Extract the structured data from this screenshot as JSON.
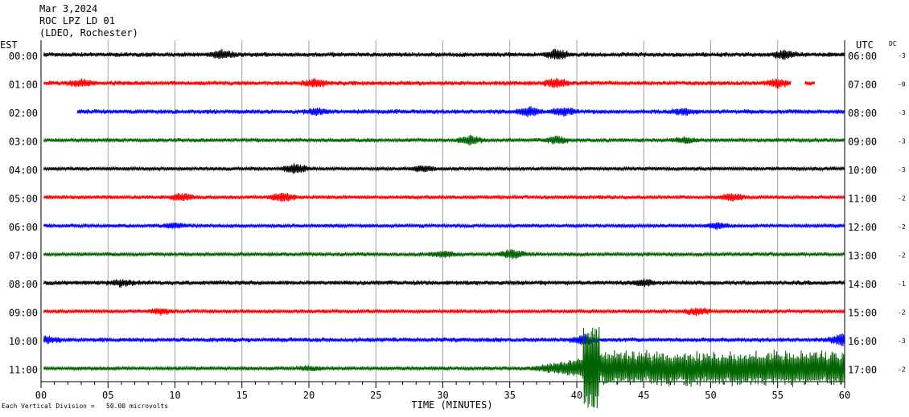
{
  "header": {
    "date": "Mar 3,2024",
    "station": "ROC LPZ LD 01",
    "network": "(LDEO, Rochester)"
  },
  "left_zone": "EST",
  "right_zone": "UTC",
  "dc_label": "DC",
  "footnote": "Each Vertical Division =   50.00 microvolts",
  "chart_data": {
    "type": "line",
    "subtype": "helicorder",
    "xlabel": "TIME (MINUTES)",
    "xlim": [
      0,
      60
    ],
    "x_ticks": [
      "00",
      "05",
      "10",
      "15",
      "20",
      "25",
      "30",
      "35",
      "40",
      "45",
      "50",
      "55",
      "60"
    ],
    "grid": true,
    "colors": [
      "#000000",
      "#ff0000",
      "#0000ff",
      "#006400"
    ],
    "traces": [
      {
        "est": "00:00",
        "utc": "06:00",
        "dc": "-3",
        "color": "#000000",
        "start_min": 0.2,
        "end_min": 60,
        "amp": 3,
        "bursts": [
          [
            13.5,
            4
          ],
          [
            38.5,
            5
          ],
          [
            55.5,
            4
          ]
        ]
      },
      {
        "est": "01:00",
        "utc": "07:00",
        "dc": "-0",
        "color": "#ff0000",
        "start_min": 0.2,
        "end_min": 57.8,
        "amp": 3,
        "gaps": [
          [
            56.0,
            57.0
          ]
        ],
        "bursts": [
          [
            3,
            3
          ],
          [
            20.5,
            4
          ],
          [
            38.5,
            5
          ],
          [
            55,
            4
          ]
        ]
      },
      {
        "est": "02:00",
        "utc": "08:00",
        "dc": "-3",
        "color": "#0000ff",
        "start_min": 2.7,
        "end_min": 60,
        "amp": 3,
        "bursts": [
          [
            20.5,
            3
          ],
          [
            36.5,
            5
          ],
          [
            39,
            4
          ],
          [
            48,
            3
          ]
        ]
      },
      {
        "est": "03:00",
        "utc": "09:00",
        "dc": "-3",
        "color": "#006400",
        "start_min": 0.2,
        "end_min": 60,
        "amp": 2.5,
        "bursts": [
          [
            32,
            5
          ],
          [
            38.5,
            4
          ],
          [
            48,
            3
          ]
        ]
      },
      {
        "est": "04:00",
        "utc": "10:00",
        "dc": "-3",
        "color": "#000000",
        "start_min": 0.2,
        "end_min": 60,
        "amp": 2.5,
        "bursts": [
          [
            19,
            5
          ],
          [
            28.5,
            3
          ]
        ]
      },
      {
        "est": "05:00",
        "utc": "11:00",
        "dc": "-2",
        "color": "#ff0000",
        "start_min": 0.2,
        "end_min": 60,
        "amp": 2.5,
        "bursts": [
          [
            10.5,
            4
          ],
          [
            18,
            5
          ],
          [
            51.5,
            4
          ]
        ]
      },
      {
        "est": "06:00",
        "utc": "12:00",
        "dc": "-2",
        "color": "#0000ff",
        "start_min": 0.2,
        "end_min": 60,
        "amp": 2.5,
        "bursts": [
          [
            10,
            3
          ],
          [
            50.5,
            3
          ]
        ]
      },
      {
        "est": "07:00",
        "utc": "13:00",
        "dc": "-2",
        "color": "#006400",
        "start_min": 0.2,
        "end_min": 60,
        "amp": 2.5,
        "bursts": [
          [
            35.2,
            5
          ],
          [
            30,
            3
          ]
        ]
      },
      {
        "est": "08:00",
        "utc": "14:00",
        "dc": "-1",
        "color": "#000000",
        "start_min": 0.2,
        "end_min": 60,
        "amp": 3,
        "bursts": [
          [
            6,
            3
          ],
          [
            45,
            3
          ]
        ]
      },
      {
        "est": "09:00",
        "utc": "15:00",
        "dc": "-2",
        "color": "#ff0000",
        "start_min": 0.2,
        "end_min": 60,
        "amp": 2.5,
        "bursts": [
          [
            9,
            3
          ],
          [
            49,
            4
          ]
        ]
      },
      {
        "est": "10:00",
        "utc": "16:00",
        "dc": "-3",
        "color": "#0000ff",
        "start_min": 0.2,
        "end_min": 60,
        "amp": 3,
        "bursts": [
          [
            0.5,
            3
          ],
          [
            40.5,
            5
          ],
          [
            59.8,
            6
          ]
        ]
      },
      {
        "est": "11:00",
        "utc": "17:00",
        "dc": "-2",
        "color": "#006400",
        "start_min": 0.2,
        "end_min": 60,
        "amp": 2.5,
        "bursts": [
          [
            20,
            2
          ]
        ],
        "event": {
          "start_min": 36.5,
          "peak_min": 40.5,
          "peak_amp": 50,
          "tail_amp": 22
        }
      }
    ]
  }
}
